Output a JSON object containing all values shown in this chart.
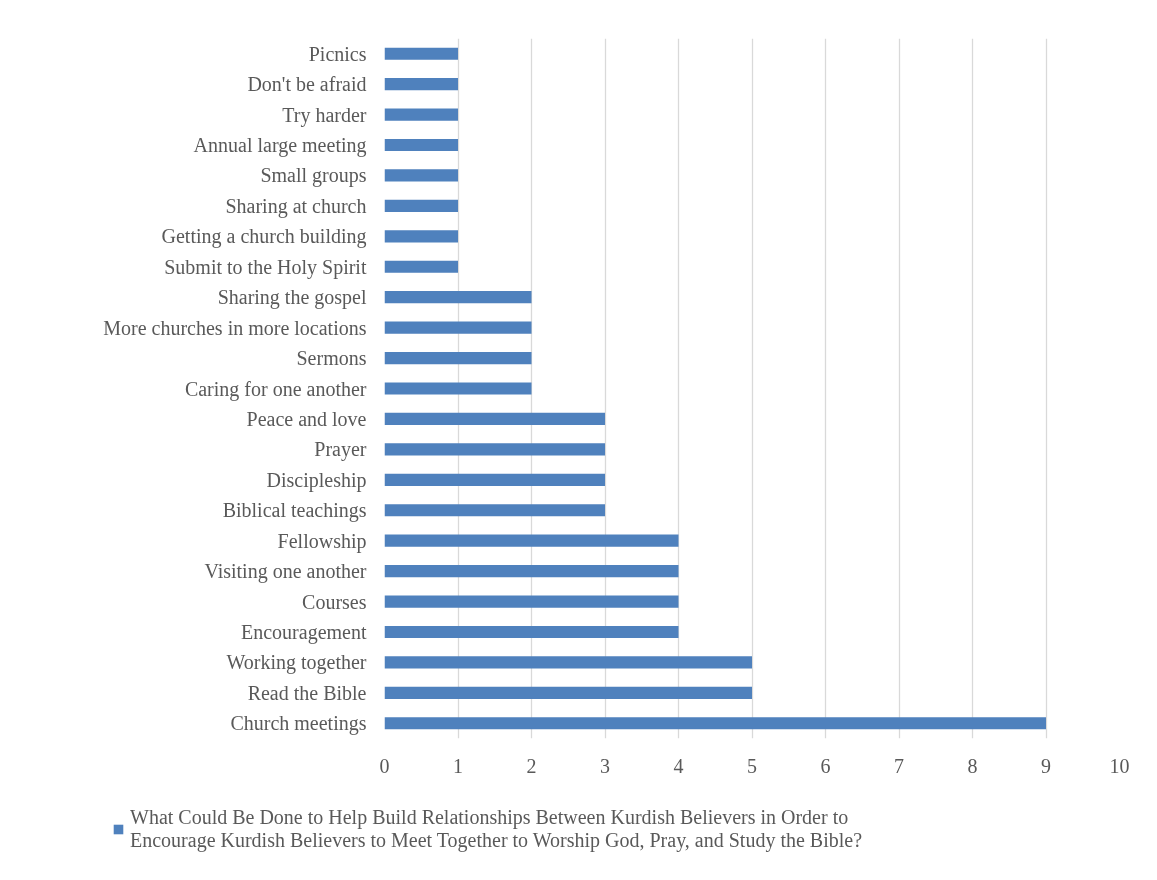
{
  "chart_data": {
    "type": "bar",
    "orientation": "horizontal",
    "categories": [
      "Picnics",
      "Don't be afraid",
      "Try harder",
      "Annual large meeting",
      "Small groups",
      "Sharing at church",
      "Getting a church building",
      "Submit to the Holy Spirit",
      "Sharing the gospel",
      "More churches in more locations",
      "Sermons",
      "Caring for one another",
      "Peace and love",
      "Prayer",
      "Discipleship",
      "Biblical teachings",
      "Fellowship",
      "Visiting one another",
      "Courses",
      "Encouragement",
      "Working together",
      "Read the Bible",
      "Church meetings"
    ],
    "series": [
      {
        "name": "What Could Be Done to Help Build Relationships Between Kurdish Believers in Order to Encourage Kurdish Believers to Meet Together to Worship God, Pray, and Study the Bible?",
        "color": "#4f81bd",
        "values": [
          1,
          1,
          1,
          1,
          1,
          1,
          1,
          1,
          2,
          2,
          2,
          2,
          3,
          3,
          3,
          3,
          4,
          4,
          4,
          4,
          5,
          5,
          9
        ]
      }
    ],
    "xlim": [
      0,
      10
    ],
    "xticks": [
      0,
      1,
      2,
      3,
      4,
      5,
      6,
      7,
      8,
      9,
      10
    ],
    "grid": "x",
    "legend": "bottom"
  }
}
